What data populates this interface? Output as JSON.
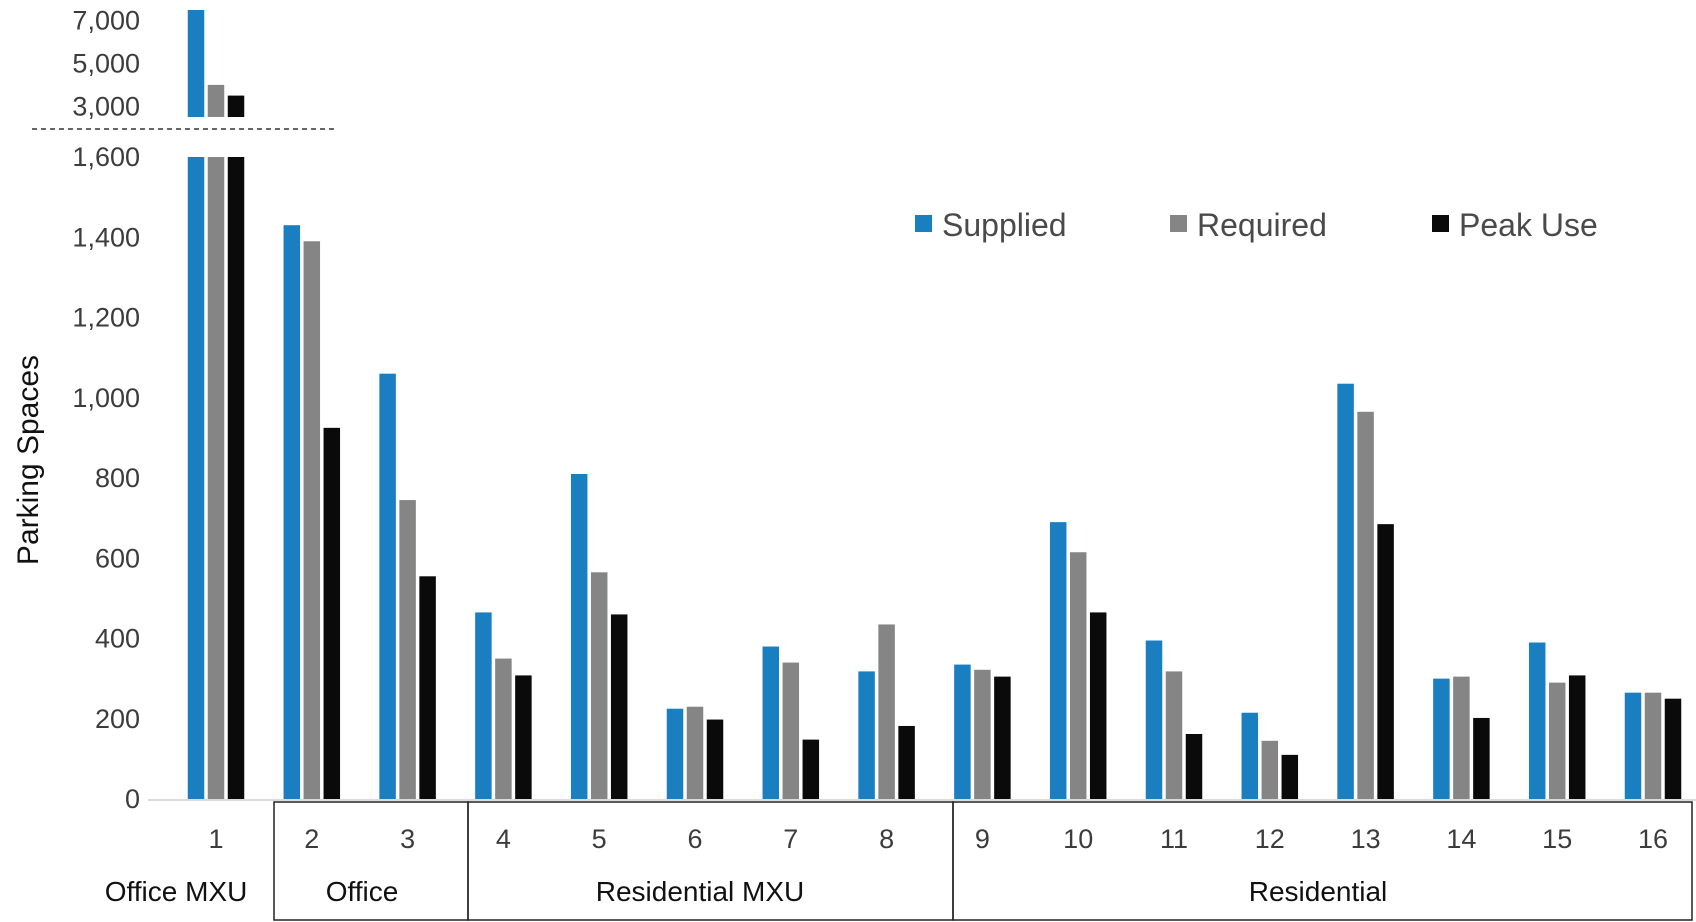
{
  "chart_data": {
    "type": "bar",
    "ylabel": "Parking Spaces",
    "categories": [
      "1",
      "2",
      "3",
      "4",
      "5",
      "6",
      "7",
      "8",
      "9",
      "10",
      "11",
      "12",
      "13",
      "14",
      "15",
      "16"
    ],
    "groups": [
      {
        "label": "Office MXU",
        "categories": [
          "1"
        ]
      },
      {
        "label": "Office",
        "categories": [
          "2",
          "3"
        ]
      },
      {
        "label": "Residential MXU",
        "categories": [
          "4",
          "5",
          "6",
          "7",
          "8"
        ]
      },
      {
        "label": "Residential",
        "categories": [
          "9",
          "10",
          "11",
          "12",
          "13",
          "14",
          "15",
          "16"
        ]
      }
    ],
    "series": [
      {
        "name": "Supplied",
        "color": "#1a7fc1",
        "values": [
          7500,
          1430,
          1060,
          465,
          810,
          225,
          380,
          318,
          335,
          690,
          395,
          215,
          1035,
          300,
          390,
          265
        ]
      },
      {
        "name": "Required",
        "color": "#858585",
        "values": [
          4000,
          1390,
          745,
          350,
          565,
          230,
          340,
          435,
          322,
          615,
          318,
          145,
          965,
          305,
          290,
          265
        ]
      },
      {
        "name": "Peak Use",
        "color": "#0a0a0a",
        "values": [
          3500,
          925,
          555,
          308,
          460,
          198,
          148,
          182,
          305,
          465,
          162,
          110,
          685,
          202,
          308,
          250
        ]
      }
    ],
    "yaxis_lower": {
      "range": [
        0,
        1600
      ],
      "ticks": [
        "0",
        "200",
        "400",
        "600",
        "800",
        "1,000",
        "1,200",
        "1,400",
        "1,600"
      ]
    },
    "yaxis_upper": {
      "range": [
        2500,
        7500
      ],
      "ticks": [
        "3,000",
        "5,000",
        "7,000"
      ]
    },
    "axis_break": true,
    "legend_position": "top-right",
    "grid": false
  }
}
